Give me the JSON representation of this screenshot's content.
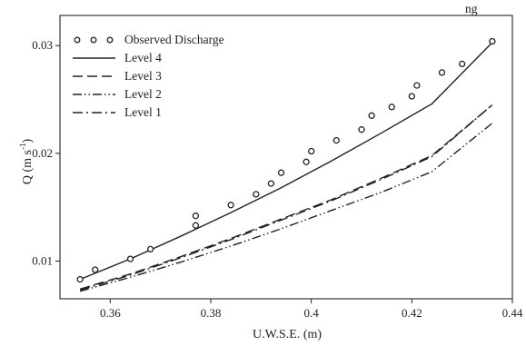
{
  "top_fragment": "ng",
  "chart_data": {
    "type": "line",
    "title": "",
    "xlabel": "U.W.S.E. (m)",
    "ylabel": "Q (m s",
    "ylabel_sup": "-1",
    "ylabel_close": ")",
    "xlim": [
      0.35,
      0.44
    ],
    "ylim": [
      0.0065,
      0.0328
    ],
    "x_ticks": [
      0.36,
      0.38,
      0.4,
      0.42,
      0.44
    ],
    "x_tick_labels": [
      "0.36",
      "0.38",
      "0.4",
      "0.42",
      "0.44"
    ],
    "y_ticks": [
      0.01,
      0.02,
      0.03
    ],
    "y_tick_labels": [
      "0.01",
      "0.02",
      "0.03"
    ],
    "grid": false,
    "legend_position": "top-left",
    "observed": {
      "name": "Observed Discharge",
      "x": [
        0.354,
        0.357,
        0.364,
        0.368,
        0.377,
        0.377,
        0.384,
        0.389,
        0.392,
        0.394,
        0.399,
        0.4,
        0.405,
        0.41,
        0.412,
        0.416,
        0.42,
        0.421,
        0.426,
        0.43,
        0.436
      ],
      "y": [
        0.0083,
        0.0092,
        0.0102,
        0.0111,
        0.0133,
        0.0142,
        0.0152,
        0.0162,
        0.0172,
        0.0182,
        0.0192,
        0.0202,
        0.0212,
        0.0222,
        0.0235,
        0.0243,
        0.0253,
        0.0263,
        0.0275,
        0.0283,
        0.0304
      ]
    },
    "series": [
      {
        "name": "Level 4",
        "dash": "solid",
        "x": [
          0.354,
          0.364,
          0.374,
          0.384,
          0.394,
          0.404,
          0.414,
          0.424,
          0.436
        ],
        "y": [
          0.0083,
          0.0102,
          0.0123,
          0.0145,
          0.0168,
          0.0193,
          0.0219,
          0.0246,
          0.0303
        ]
      },
      {
        "name": "Level 3",
        "dash": "long-dash",
        "x": [
          0.354,
          0.364,
          0.374,
          0.384,
          0.394,
          0.404,
          0.414,
          0.424,
          0.436
        ],
        "y": [
          0.0074,
          0.0088,
          0.0104,
          0.0121,
          0.0139,
          0.0157,
          0.0177,
          0.0198,
          0.0245
        ]
      },
      {
        "name": "Level 2",
        "dash": "dash-dot-dot",
        "x": [
          0.354,
          0.364,
          0.374,
          0.384,
          0.394,
          0.404,
          0.414,
          0.424,
          0.436
        ],
        "y": [
          0.0072,
          0.0085,
          0.0099,
          0.0114,
          0.013,
          0.0147,
          0.0164,
          0.0183,
          0.0228
        ]
      },
      {
        "name": "Level 1",
        "dash": "dash-dot",
        "x": [
          0.354,
          0.364,
          0.374,
          0.384,
          0.394,
          0.404,
          0.414,
          0.424,
          0.436
        ],
        "y": [
          0.0073,
          0.0087,
          0.0103,
          0.012,
          0.0138,
          0.0156,
          0.0176,
          0.0197,
          0.0245
        ]
      }
    ]
  }
}
